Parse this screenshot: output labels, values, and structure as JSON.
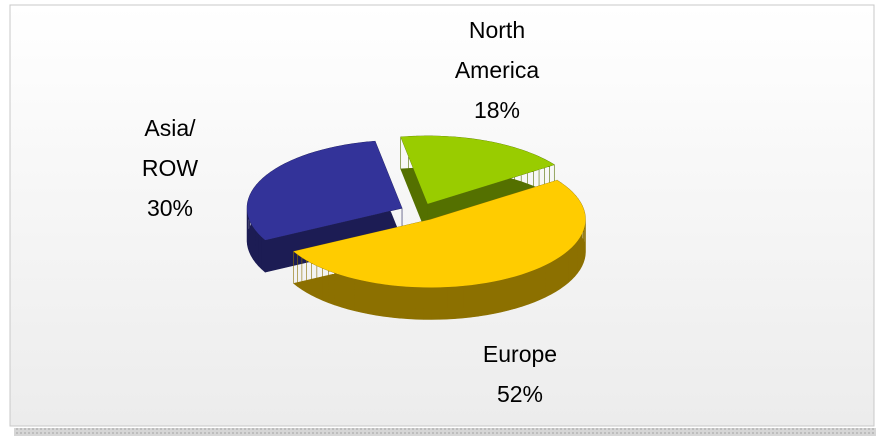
{
  "chart_data": {
    "type": "pie",
    "categories": [
      "North America",
      "Europe",
      "Asia/ ROW"
    ],
    "values": [
      18,
      52,
      30
    ],
    "value_labels": [
      "18%",
      "52%",
      "30%"
    ],
    "colors": [
      "#99cc00",
      "#ffcc00",
      "#333399"
    ]
  }
}
